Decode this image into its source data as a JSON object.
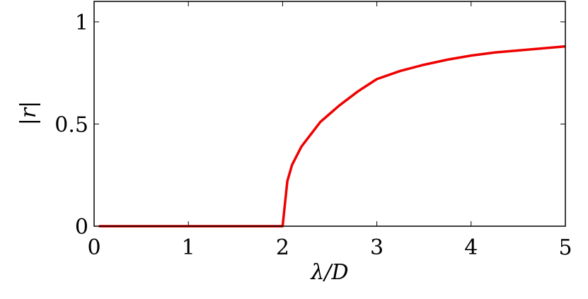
{
  "chart_data": {
    "type": "line",
    "xlabel": "λ/D",
    "ylabel": "|r|",
    "x": [
      0.05,
      0.5,
      1,
      1.5,
      2,
      2.05,
      2.1,
      2.2,
      2.3,
      2.4,
      2.5,
      2.6,
      2.8,
      3,
      3.25,
      3.5,
      3.75,
      4,
      4.25,
      4.5,
      4.75,
      5
    ],
    "series": [
      {
        "color": "#ee0000",
        "values": [
          0,
          0,
          0,
          0,
          0,
          0.22,
          0.3,
          0.39,
          0.45,
          0.51,
          0.55,
          0.59,
          0.66,
          0.72,
          0.76,
          0.79,
          0.815,
          0.835,
          0.85,
          0.86,
          0.87,
          0.88
        ]
      }
    ],
    "xlim": [
      0,
      5
    ],
    "xticks": [
      0,
      1,
      2,
      3,
      4,
      5
    ],
    "ylim": [
      0,
      1.1
    ],
    "yticks": [
      0,
      0.5,
      1
    ]
  }
}
